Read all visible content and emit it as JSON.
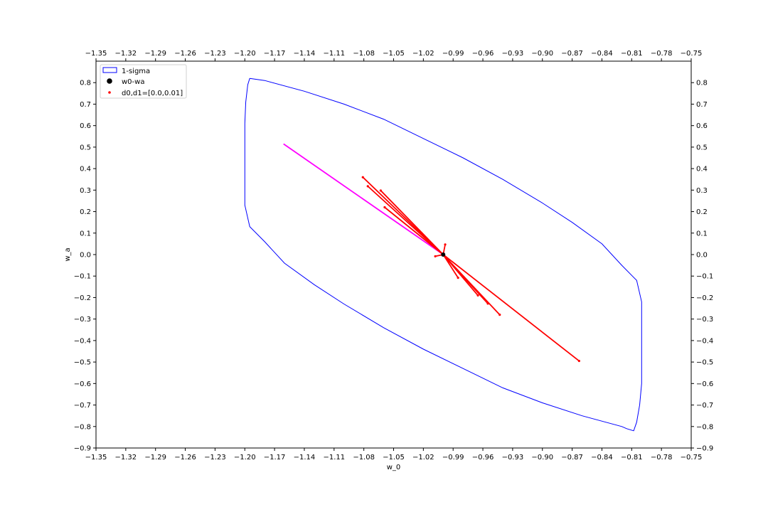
{
  "chart_data": {
    "type": "scatter",
    "title": "",
    "xlabel": "w_0",
    "ylabel": "w_a",
    "xlim": [
      -1.35,
      -0.75
    ],
    "ylim": [
      -0.9,
      0.9
    ],
    "x_ticks": [
      "−1.35",
      "−1.32",
      "−1.29",
      "−1.26",
      "−1.23",
      "−1.20",
      "−1.17",
      "−1.14",
      "−1.11",
      "−1.08",
      "−1.05",
      "−1.02",
      "−0.99",
      "−0.96",
      "−0.93",
      "−0.90",
      "−0.87",
      "−0.84",
      "−0.81",
      "−0.78",
      "−0.75"
    ],
    "y_ticks": [
      "0.8",
      "0.7",
      "0.6",
      "0.5",
      "0.4",
      "0.3",
      "0.2",
      "0.1",
      "0.0",
      "−0.1",
      "−0.2",
      "−0.3",
      "−0.4",
      "−0.5",
      "−0.6",
      "−0.7",
      "−0.8",
      "−0.9"
    ],
    "legend_position": "top-left",
    "grid": false,
    "center": {
      "x": -1.0,
      "y": 0.0
    },
    "ellipse": {
      "name": "1-sigma",
      "color": "#0000ff",
      "points": [
        [
          -1.195,
          0.82
        ],
        [
          -1.18,
          0.81
        ],
        [
          -1.14,
          0.76
        ],
        [
          -1.1,
          0.7
        ],
        [
          -1.06,
          0.63
        ],
        [
          -1.02,
          0.54
        ],
        [
          -0.98,
          0.45
        ],
        [
          -0.94,
          0.35
        ],
        [
          -0.9,
          0.24
        ],
        [
          -0.87,
          0.15
        ],
        [
          -0.84,
          0.05
        ],
        [
          -0.82,
          -0.05
        ],
        [
          -0.805,
          -0.12
        ],
        [
          -0.8,
          -0.22
        ],
        [
          -0.8,
          -0.3
        ],
        [
          -0.8,
          -0.4
        ],
        [
          -0.8,
          -0.5
        ],
        [
          -0.8,
          -0.6
        ],
        [
          -0.802,
          -0.7
        ],
        [
          -0.805,
          -0.78
        ],
        [
          -0.808,
          -0.82
        ],
        [
          -0.815,
          -0.81
        ],
        [
          -0.82,
          -0.8
        ],
        [
          -0.86,
          -0.75
        ],
        [
          -0.9,
          -0.69
        ],
        [
          -0.94,
          -0.62
        ],
        [
          -0.98,
          -0.53
        ],
        [
          -1.02,
          -0.44
        ],
        [
          -1.06,
          -0.34
        ],
        [
          -1.1,
          -0.23
        ],
        [
          -1.13,
          -0.14
        ],
        [
          -1.16,
          -0.04
        ],
        [
          -1.18,
          0.06
        ],
        [
          -1.195,
          0.13
        ],
        [
          -1.2,
          0.23
        ],
        [
          -1.2,
          0.31
        ],
        [
          -1.2,
          0.41
        ],
        [
          -1.2,
          0.51
        ],
        [
          -1.2,
          0.61
        ],
        [
          -1.199,
          0.71
        ],
        [
          -1.197,
          0.79
        ],
        [
          -1.195,
          0.82
        ]
      ]
    },
    "marker_series": {
      "name": "w0-wa",
      "color": "#000000",
      "points": [
        [
          -1.0,
          0.0
        ]
      ]
    },
    "samples_series": {
      "name": "d0,d1=[0.0,0.01]",
      "color": "#ff0000",
      "endpoints": [
        [
          -1.081,
          0.36
        ],
        [
          -1.076,
          0.318
        ],
        [
          -1.063,
          0.298
        ],
        [
          -1.059,
          0.22
        ],
        [
          -0.998,
          0.047
        ],
        [
          -1.008,
          -0.008
        ],
        [
          -0.985,
          -0.108
        ],
        [
          -0.965,
          -0.19
        ],
        [
          -0.955,
          -0.228
        ],
        [
          -0.943,
          -0.28
        ],
        [
          -0.863,
          -0.495
        ]
      ]
    },
    "magenta_line": {
      "color": "#ff00ff",
      "points": [
        [
          -1.161,
          0.515
        ],
        [
          -1.0,
          0.0
        ]
      ]
    },
    "legend": [
      {
        "label": "1-sigma"
      },
      {
        "label": "w0-wa"
      },
      {
        "label": "d0,d1=[0.0,0.01]"
      }
    ]
  }
}
